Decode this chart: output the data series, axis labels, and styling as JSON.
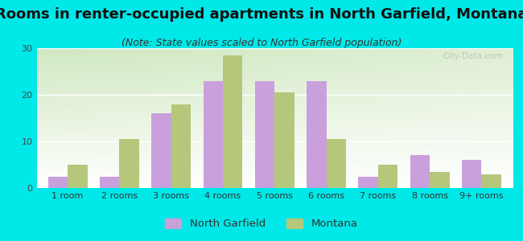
{
  "title": "Rooms in renter-occupied apartments in North Garfield, Montana",
  "subtitle": "(Note: State values scaled to North Garfield population)",
  "categories": [
    "1 room",
    "2 rooms",
    "3 rooms",
    "4 rooms",
    "5 rooms",
    "6 rooms",
    "7 rooms",
    "8 rooms",
    "9+ rooms"
  ],
  "north_garfield": [
    2.5,
    2.5,
    16,
    23,
    23,
    23,
    2.5,
    7,
    6
  ],
  "montana": [
    5.0,
    10.5,
    18,
    28.5,
    20.5,
    10.5,
    5.0,
    3.5,
    3
  ],
  "ng_color": "#c9a0dc",
  "mt_color": "#b5c77a",
  "background_color": "#00e8e8",
  "title_fontsize": 13,
  "subtitle_fontsize": 9,
  "ylim": [
    0,
    30
  ],
  "yticks": [
    0,
    10,
    20,
    30
  ],
  "bar_width": 0.38,
  "watermark": "City-Data.com"
}
